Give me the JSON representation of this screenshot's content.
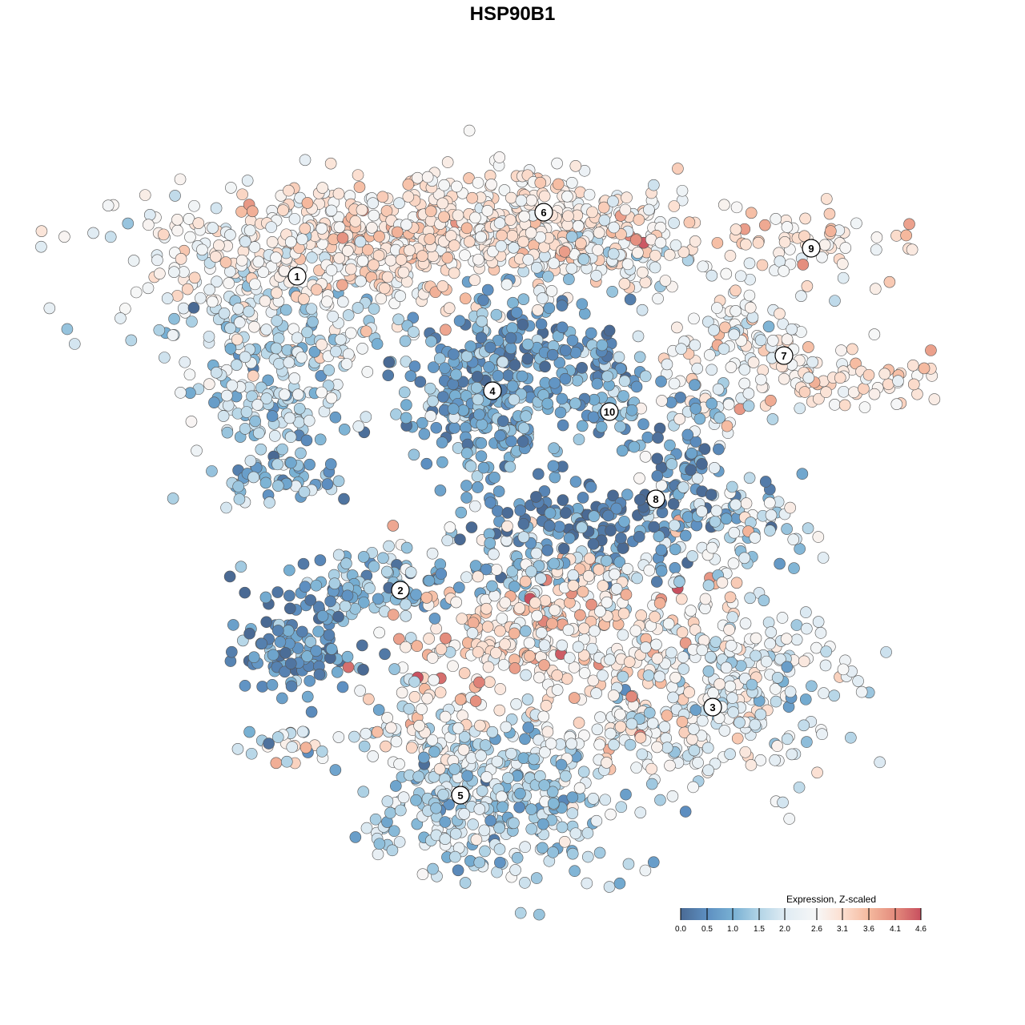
{
  "chart_data": {
    "type": "scatter",
    "title": "HSP90B1",
    "xlabel": "",
    "ylabel": "",
    "xlim": [
      -50,
      50
    ],
    "ylim": [
      -50,
      50
    ],
    "grid": false,
    "point_note": "Cells grouped into 10 clusters; each blob = center (x,y), spread (sx,sy), count, mean expression, expression sd",
    "blobs": [
      {
        "cluster": "1",
        "x": -31,
        "y": 33,
        "sx": 9,
        "sy": 4,
        "n": 220,
        "mu": 2.6,
        "sd": 0.5
      },
      {
        "cluster": "1",
        "x": -30,
        "y": 22,
        "sx": 8,
        "sy": 5,
        "n": 200,
        "mu": 1.9,
        "sd": 0.6
      },
      {
        "cluster": "1",
        "x": -30,
        "y": 12,
        "sx": 5,
        "sy": 5,
        "n": 90,
        "mu": 1.4,
        "sd": 0.5
      },
      {
        "cluster": "1",
        "x": -29,
        "y": 4,
        "sx": 5,
        "sy": 2,
        "n": 40,
        "mu": 0.9,
        "sd": 0.5
      },
      {
        "cluster": "1",
        "x": -15,
        "y": 34,
        "sx": 8,
        "sy": 4,
        "n": 200,
        "mu": 3.0,
        "sd": 0.35
      },
      {
        "cluster": "6",
        "x": -4,
        "y": 36,
        "sx": 8,
        "sy": 3.5,
        "n": 200,
        "mu": 2.9,
        "sd": 0.4
      },
      {
        "cluster": "6",
        "x": 7,
        "y": 35,
        "sx": 7,
        "sy": 3.5,
        "n": 170,
        "mu": 2.7,
        "sd": 0.45
      },
      {
        "cluster": "6",
        "x": 13,
        "y": 33,
        "sx": 6,
        "sy": 3,
        "n": 80,
        "mu": 2.4,
        "sd": 0.6
      },
      {
        "cluster": "9",
        "x": 35,
        "y": 33,
        "sx": 7,
        "sy": 2.5,
        "n": 70,
        "mu": 2.8,
        "sd": 0.5
      },
      {
        "cluster": "7",
        "x": 28,
        "y": 22,
        "sx": 6,
        "sy": 3,
        "n": 90,
        "mu": 2.5,
        "sd": 0.6
      },
      {
        "cluster": "7",
        "x": 40,
        "y": 17,
        "sx": 6,
        "sy": 2,
        "n": 70,
        "mu": 2.9,
        "sd": 0.4
      },
      {
        "cluster": "7",
        "x": 26,
        "y": 13,
        "sx": 4,
        "sy": 2,
        "n": 40,
        "mu": 2.4,
        "sd": 0.7
      },
      {
        "cluster": "4",
        "x": -3,
        "y": 15,
        "sx": 5,
        "sy": 6,
        "n": 300,
        "mu": 0.9,
        "sd": 0.5
      },
      {
        "cluster": "4",
        "x": 8,
        "y": 20,
        "sx": 5,
        "sy": 2.5,
        "n": 60,
        "mu": 0.6,
        "sd": 0.5
      },
      {
        "cluster": "10",
        "x": 12,
        "y": 13,
        "sx": 2.5,
        "sy": 3.5,
        "n": 60,
        "mu": 1.0,
        "sd": 0.5
      },
      {
        "cluster": "8",
        "x": 21,
        "y": 6,
        "sx": 2,
        "sy": 6,
        "n": 60,
        "mu": 0.6,
        "sd": 0.6
      },
      {
        "cluster": "8",
        "x": 27,
        "y": -1,
        "sx": 5,
        "sy": 3,
        "n": 90,
        "mu": 1.5,
        "sd": 0.8
      },
      {
        "cluster": "8",
        "x": 9,
        "y": -1,
        "sx": 7,
        "sy": 2,
        "n": 90,
        "mu": 0.4,
        "sd": 0.5
      },
      {
        "cluster": "2",
        "x": -19,
        "y": -9,
        "sx": 5,
        "sy": 2.5,
        "n": 90,
        "mu": 1.0,
        "sd": 0.5
      },
      {
        "cluster": "2",
        "x": -27,
        "y": -17,
        "sx": 4,
        "sy": 3,
        "n": 110,
        "mu": 0.6,
        "sd": 0.5
      },
      {
        "cluster": "center",
        "x": 4,
        "y": -15,
        "sx": 10,
        "sy": 5,
        "n": 330,
        "mu": 2.9,
        "sd": 0.6
      },
      {
        "cluster": "center",
        "x": 5,
        "y": -6,
        "sx": 9,
        "sy": 2.5,
        "n": 110,
        "mu": 1.4,
        "sd": 0.8
      },
      {
        "cluster": "3",
        "x": 27,
        "y": -22,
        "sx": 8,
        "sy": 6,
        "n": 260,
        "mu": 2.1,
        "sd": 0.6
      },
      {
        "cluster": "3",
        "x": 15,
        "y": -27,
        "sx": 5,
        "sy": 4,
        "n": 90,
        "mu": 2.5,
        "sd": 0.6
      },
      {
        "cluster": "5",
        "x": -2,
        "y": -36,
        "sx": 8,
        "sy": 5,
        "n": 320,
        "mu": 1.6,
        "sd": 0.6
      },
      {
        "cluster": "5",
        "x": -10,
        "y": -27,
        "sx": 4,
        "sy": 3,
        "n": 80,
        "mu": 2.3,
        "sd": 0.6
      },
      {
        "cluster": "small",
        "x": -28,
        "y": -29,
        "sx": 3,
        "sy": 1.5,
        "n": 25,
        "mu": 2.4,
        "sd": 0.8
      }
    ],
    "cluster_labels": [
      {
        "label": "1",
        "x": -26.9,
        "y": 29.5
      },
      {
        "label": "6",
        "x": 3.9,
        "y": 37.5
      },
      {
        "label": "9",
        "x": 37.3,
        "y": 33
      },
      {
        "label": "7",
        "x": 33.9,
        "y": 19.6
      },
      {
        "label": "4",
        "x": -2.5,
        "y": 15.2
      },
      {
        "label": "10",
        "x": 12.1,
        "y": 12.6
      },
      {
        "label": "8",
        "x": 17.9,
        "y": 1.7
      },
      {
        "label": "2",
        "x": -14,
        "y": -9.7
      },
      {
        "label": "3",
        "x": 25,
        "y": -24.3
      },
      {
        "label": "5",
        "x": -6.5,
        "y": -35.3
      }
    ],
    "legend": {
      "title": "Expression, Z-scaled",
      "ticks": [
        "0.0",
        "0.5",
        "1.0",
        "1.5",
        "2.0",
        "2.6",
        "3.1",
        "3.6",
        "4.1",
        "4.6"
      ],
      "min": 0.0,
      "max": 4.6,
      "colors": [
        "#4a6a94",
        "#5d8fc1",
        "#78b0d3",
        "#b2d4e6",
        "#dfebf3",
        "#f7f7f7",
        "#fcdfd0",
        "#f5b99e",
        "#e38b7c",
        "#c8505f"
      ],
      "placement": "bottom-right"
    }
  }
}
